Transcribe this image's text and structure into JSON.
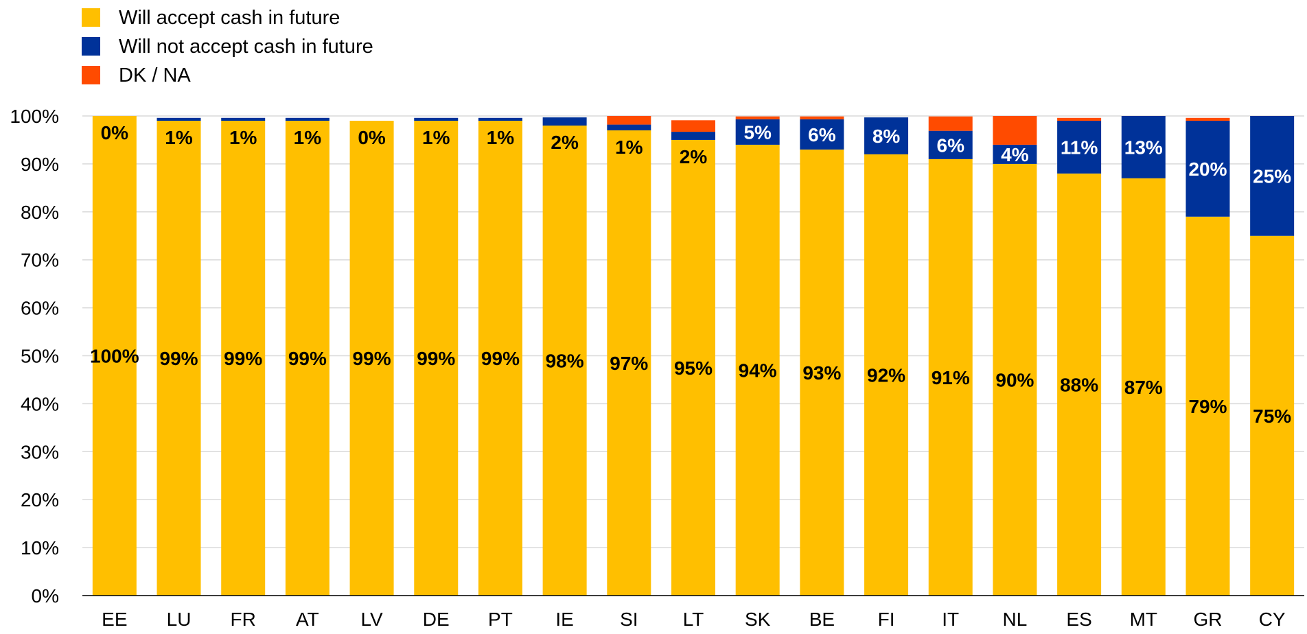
{
  "colors": {
    "accept": "#FFBF00",
    "not_accept": "#003299",
    "dk_na": "#FF4B00",
    "grid": "#D9D9D9",
    "axis": "#000000"
  },
  "legend": {
    "items": [
      {
        "label": "Will accept cash in future",
        "color": "#FFBF00"
      },
      {
        "label": "Will not accept cash in future",
        "color": "#003299"
      },
      {
        "label": "DK / NA",
        "color": "#FF4B00"
      }
    ]
  },
  "chart_data": {
    "type": "bar",
    "stacked": true,
    "title": "",
    "xlabel": "",
    "ylabel": "",
    "ylim": [
      0,
      100
    ],
    "y_ticks": [
      "0%",
      "10%",
      "20%",
      "30%",
      "40%",
      "50%",
      "60%",
      "70%",
      "80%",
      "90%",
      "100%"
    ],
    "grid": true,
    "legend_position": "top-left",
    "categories": [
      "EE",
      "LU",
      "FR",
      "AT",
      "LV",
      "DE",
      "PT",
      "IE",
      "SI",
      "LT",
      "SK",
      "BE",
      "FI",
      "IT",
      "NL",
      "ES",
      "MT",
      "GR",
      "CY"
    ],
    "series": [
      {
        "name": "Will accept cash in future",
        "values": [
          100,
          99,
          99,
          99,
          99,
          99,
          99,
          98,
          97,
          95,
          94,
          93,
          92,
          91,
          90,
          88,
          87,
          79,
          75
        ],
        "labels": [
          "100%",
          "99%",
          "99%",
          "99%",
          "99%",
          "99%",
          "99%",
          "98%",
          "97%",
          "95%",
          "94%",
          "93%",
          "92%",
          "91%",
          "90%",
          "88%",
          "87%",
          "79%",
          "75%"
        ]
      },
      {
        "name": "Will not accept cash in future",
        "values": [
          0,
          0.6,
          0.6,
          0.6,
          0,
          0.6,
          0.6,
          1.7,
          1.2,
          1.7,
          5.3,
          6.3,
          7.7,
          5.9,
          4,
          11,
          13,
          20,
          25
        ],
        "labels": [
          "0%",
          "1%",
          "1%",
          "1%",
          "0%",
          "1%",
          "1%",
          "2%",
          "1%",
          "2%",
          "5%",
          "6%",
          "8%",
          "6%",
          "4%",
          "11%",
          "13%",
          "20%",
          "25%"
        ]
      },
      {
        "name": "DK / NA",
        "values": [
          0,
          0,
          0,
          0,
          0,
          0,
          0,
          0,
          1.8,
          2.4,
          0.6,
          0.6,
          0,
          3,
          6,
          0.6,
          0,
          0.6,
          0
        ]
      }
    ]
  }
}
